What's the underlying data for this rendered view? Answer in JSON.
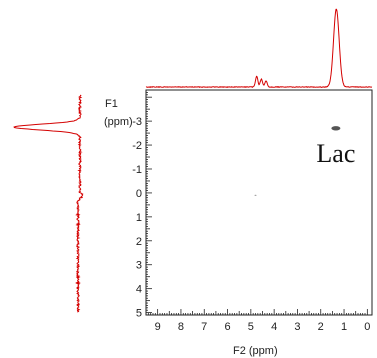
{
  "chart_data": {
    "type": "scatter",
    "x_axis": {
      "label": "F2 (ppm)",
      "range": [
        9.5,
        -0.2
      ],
      "ticks": [
        9,
        8,
        7,
        6,
        5,
        4,
        3,
        2,
        1,
        0
      ],
      "reversed": true
    },
    "y_axis": {
      "label_line1": "F1",
      "label_line2": "(ppm)",
      "range": [
        -4.3,
        5.1
      ],
      "ticks": [
        -3,
        -2,
        -1,
        0,
        1,
        2,
        3,
        4,
        5
      ]
    },
    "peaks": [
      {
        "f2": 1.35,
        "f1": -2.7
      },
      {
        "f2": 4.8,
        "f1": 0.1
      }
    ],
    "annotations": [
      {
        "text": "Lac",
        "f2": 1.35,
        "f1": -1.3
      }
    ],
    "top_projection": {
      "color": "#d40000",
      "peaks": [
        {
          "center": 1.33,
          "height": 1.0,
          "width": 0.12
        },
        {
          "center": 4.75,
          "height": 0.14,
          "width": 0.05
        },
        {
          "center": 4.55,
          "height": 0.1,
          "width": 0.05
        },
        {
          "center": 4.35,
          "height": 0.08,
          "width": 0.05
        }
      ]
    },
    "side_projection": {
      "color": "#d40000",
      "peaks": [
        {
          "center": -2.75,
          "height": 1.0,
          "width": 0.12
        }
      ]
    },
    "grid": false
  }
}
